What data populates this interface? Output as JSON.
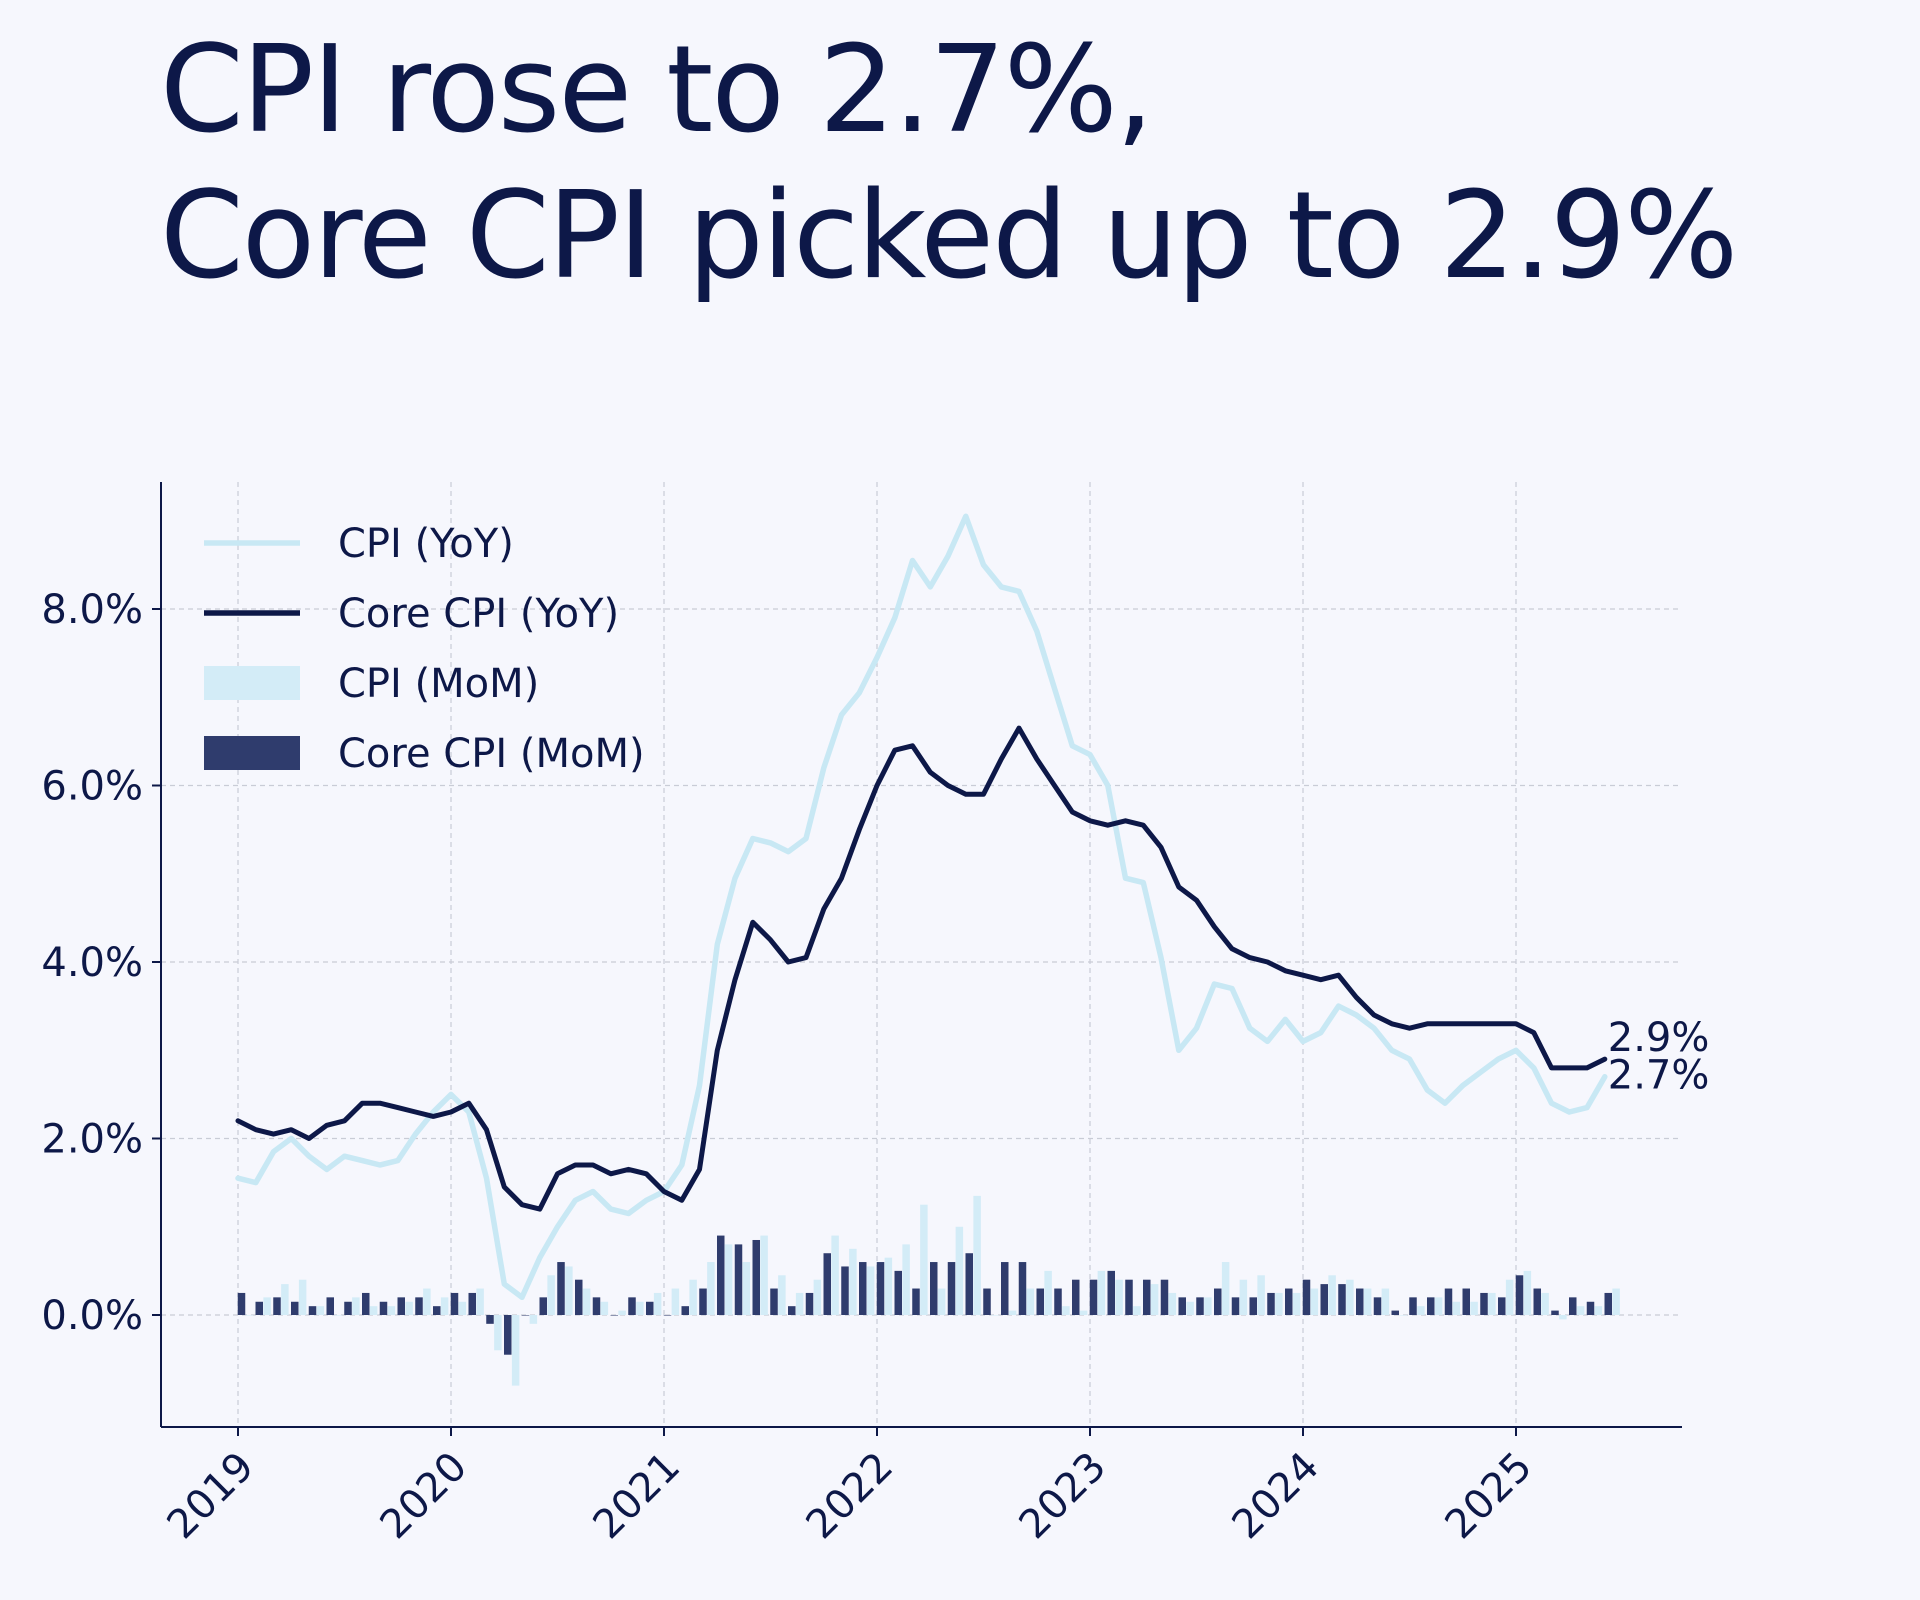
{
  "title": {
    "line1": "CPI rose to 2.7%,",
    "line2": "Core CPI picked up to 2.9%"
  },
  "colors": {
    "background": "#f6f7fd",
    "cpi_yoy": "#c8e8f4",
    "core_yoy": "#0d1848",
    "cpi_mom": "#d3ecf7",
    "core_mom": "#2f3c6d",
    "text": "#0d1848",
    "grid": "#c9ccd6"
  },
  "chart_data": {
    "type": "line",
    "x_start": "2019-01",
    "x_end": "2025-06",
    "frequency": "monthly",
    "x_ticks": [
      "2019",
      "2020",
      "2021",
      "2022",
      "2023",
      "2024",
      "2025"
    ],
    "y_ticks": [
      "0.0%",
      "2.0%",
      "4.0%",
      "6.0%",
      "8.0%"
    ],
    "y_tick_values": [
      0,
      2,
      4,
      6,
      8
    ],
    "ylim": [
      -1.25,
      9.5
    ],
    "grid": true,
    "legend_position": "top-left",
    "series": [
      {
        "name": "CPI (YoY)",
        "kind": "line",
        "color_key": "cpi_yoy",
        "values": [
          1.55,
          1.5,
          1.85,
          2.0,
          1.8,
          1.65,
          1.8,
          1.75,
          1.7,
          1.75,
          2.05,
          2.3,
          2.5,
          2.3,
          1.55,
          0.35,
          0.2,
          0.65,
          1.0,
          1.3,
          1.4,
          1.2,
          1.15,
          1.3,
          1.4,
          1.7,
          2.6,
          4.2,
          4.95,
          5.4,
          5.35,
          5.25,
          5.4,
          6.2,
          6.8,
          7.05,
          7.45,
          7.9,
          8.55,
          8.25,
          8.6,
          9.05,
          8.5,
          8.25,
          8.2,
          7.75,
          7.1,
          6.45,
          6.35,
          6.0,
          4.95,
          4.9,
          4.05,
          3.0,
          3.25,
          3.75,
          3.7,
          3.25,
          3.1,
          3.35,
          3.1,
          3.2,
          3.5,
          3.4,
          3.25,
          3.0,
          2.9,
          2.55,
          2.4,
          2.6,
          2.75,
          2.9,
          3.0,
          2.8,
          2.4,
          2.3,
          2.35,
          2.7
        ]
      },
      {
        "name": "Core CPI (YoY)",
        "kind": "line",
        "color_key": "core_yoy",
        "values": [
          2.2,
          2.1,
          2.05,
          2.1,
          2.0,
          2.15,
          2.2,
          2.4,
          2.4,
          2.35,
          2.3,
          2.25,
          2.3,
          2.4,
          2.1,
          1.45,
          1.25,
          1.2,
          1.6,
          1.7,
          1.7,
          1.6,
          1.65,
          1.6,
          1.4,
          1.3,
          1.65,
          3.0,
          3.8,
          4.45,
          4.25,
          4.0,
          4.05,
          4.6,
          4.95,
          5.5,
          6.0,
          6.4,
          6.45,
          6.15,
          6.0,
          5.9,
          5.9,
          6.3,
          6.65,
          6.3,
          6.0,
          5.7,
          5.6,
          5.55,
          5.6,
          5.55,
          5.3,
          4.85,
          4.7,
          4.4,
          4.15,
          4.05,
          4.0,
          3.9,
          3.85,
          3.8,
          3.85,
          3.6,
          3.4,
          3.3,
          3.25,
          3.3,
          3.3,
          3.3,
          3.3,
          3.3,
          3.3,
          3.2,
          2.8,
          2.8,
          2.8,
          2.9
        ]
      },
      {
        "name": "CPI (MoM)",
        "kind": "bar",
        "color_key": "cpi_mom",
        "values": [
          0.0,
          0.2,
          0.35,
          0.4,
          0.1,
          0.0,
          0.2,
          0.1,
          0.1,
          0.15,
          0.3,
          0.2,
          0.15,
          0.3,
          -0.4,
          -0.8,
          -0.1,
          0.45,
          0.55,
          0.3,
          0.15,
          0.05,
          0.15,
          0.25,
          0.3,
          0.4,
          0.6,
          0.8,
          0.6,
          0.9,
          0.45,
          0.25,
          0.4,
          0.9,
          0.75,
          0.55,
          0.65,
          0.8,
          1.25,
          0.3,
          1.0,
          1.35,
          0.0,
          0.05,
          0.3,
          0.5,
          0.1,
          0.05,
          0.5,
          0.4,
          0.1,
          0.35,
          0.25,
          0.15,
          0.2,
          0.6,
          0.4,
          0.45,
          0.25,
          0.25,
          0.3,
          0.45,
          0.4,
          0.3,
          0.3,
          0.0,
          0.1,
          0.2,
          0.15,
          0.15,
          0.25,
          0.4,
          0.5,
          0.25,
          -0.05,
          0.1,
          0.1,
          0.3
        ]
      },
      {
        "name": "Core CPI (MoM)",
        "kind": "bar",
        "color_key": "core_mom",
        "values": [
          0.25,
          0.15,
          0.2,
          0.15,
          0.1,
          0.2,
          0.15,
          0.25,
          0.15,
          0.2,
          0.2,
          0.1,
          0.25,
          0.25,
          -0.1,
          -0.45,
          0.0,
          0.2,
          0.6,
          0.4,
          0.2,
          0.0,
          0.2,
          0.15,
          0.0,
          0.1,
          0.3,
          0.9,
          0.8,
          0.85,
          0.3,
          0.1,
          0.25,
          0.7,
          0.55,
          0.6,
          0.6,
          0.5,
          0.3,
          0.6,
          0.6,
          0.7,
          0.3,
          0.6,
          0.6,
          0.3,
          0.3,
          0.4,
          0.4,
          0.5,
          0.4,
          0.4,
          0.4,
          0.2,
          0.2,
          0.3,
          0.2,
          0.2,
          0.25,
          0.3,
          0.4,
          0.35,
          0.35,
          0.3,
          0.2,
          0.05,
          0.2,
          0.2,
          0.3,
          0.3,
          0.25,
          0.2,
          0.45,
          0.3,
          0.05,
          0.2,
          0.15,
          0.25
        ]
      }
    ],
    "end_labels": [
      {
        "text": "2.9%",
        "series": "Core CPI (YoY)",
        "value": 2.9
      },
      {
        "text": "2.7%",
        "series": "CPI (YoY)",
        "value": 2.7
      }
    ]
  }
}
